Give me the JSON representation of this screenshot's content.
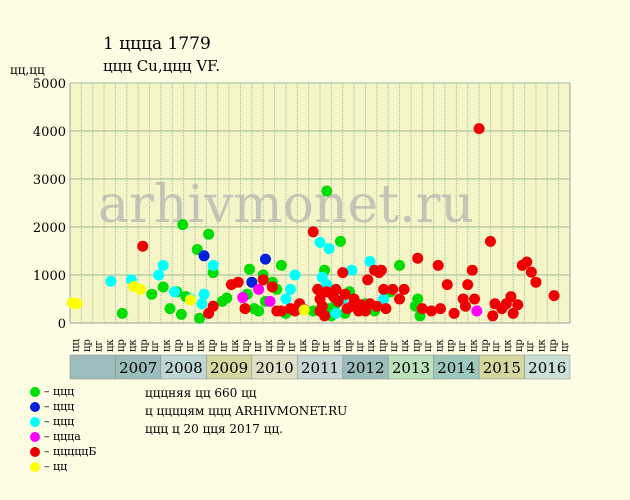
{
  "title": "1 ццца 1779",
  "subtitle": "ццц Cu,ццц VF.",
  "y_unit": "цц,цц",
  "watermark": "arhivmonet.ru",
  "colors": {
    "background": "#fdfde3",
    "plot_background": "#f5f5c8",
    "grid": "#9cbd9c",
    "axis": "#a0a0a0"
  },
  "legend": [
    {
      "label": "– ццц",
      "color": "#00dd00"
    },
    {
      "label": "– ццц",
      "color": "#0022dd"
    },
    {
      "label": "– ццц",
      "color": "#00ffff"
    },
    {
      "label": "– ццца",
      "color": "#ff00ff"
    },
    {
      "label": "– цццццБ",
      "color": "#ee0000"
    },
    {
      "label": "– цц",
      "color": "#ffff00"
    }
  ],
  "info_lines": [
    "цццняя цц 660 цц",
    "ц ццццям ццц ARHIVMONET.RU",
    "ццц ц 20 цця 2017 цц."
  ],
  "years": [
    {
      "label": "2007",
      "color": "#9cbdbd"
    },
    {
      "label": "2008",
      "color": "#bdd6d6"
    },
    {
      "label": "2009",
      "color": "#d6d6a0"
    },
    {
      "label": "2010",
      "color": "#e0e0c8"
    },
    {
      "label": "2011",
      "color": "#c8d6d6"
    },
    {
      "label": "2012",
      "color": "#9cbdbd"
    },
    {
      "label": "2013",
      "color": "#bde0bd"
    },
    {
      "label": "2014",
      "color": "#9cc8bd"
    },
    {
      "label": "2015",
      "color": "#d6d6a0"
    },
    {
      "label": "2016",
      "color": "#c8e0d6"
    }
  ],
  "month_labels": [
    "цц",
    "цр",
    "цг",
    "цк",
    "цр",
    "цк",
    "цр",
    "цг",
    "цк",
    "цр",
    "цг",
    "цк",
    "цр",
    "цг",
    "цк",
    "цр",
    "цг",
    "цк",
    "цр",
    "цг",
    "цк",
    "цр",
    "цг",
    "цк",
    "цр",
    "цг",
    "цк",
    "цр",
    "цг",
    "цк",
    "цр",
    "цг",
    "цк",
    "цр",
    "цг",
    "цк",
    "цр",
    "цг",
    "цк",
    "цр",
    "цг",
    "цк",
    "цр",
    "цг"
  ],
  "chart_data": {
    "type": "scatter",
    "x_unit": "year",
    "xlim": [
      2006.0,
      2017.0
    ],
    "ylim": [
      0,
      5000
    ],
    "yticks": [
      0,
      1000,
      2000,
      3000,
      4000,
      5000
    ],
    "grid": true,
    "legend_placement": "bottom-left",
    "series": [
      {
        "name": "– ццц",
        "color": "#00dd00",
        "points": [
          [
            2007.15,
            200
          ],
          [
            2007.8,
            600
          ],
          [
            2008.05,
            750
          ],
          [
            2008.2,
            300
          ],
          [
            2008.35,
            650
          ],
          [
            2008.45,
            180
          ],
          [
            2008.48,
            2050
          ],
          [
            2008.55,
            550
          ],
          [
            2008.8,
            1530
          ],
          [
            2008.85,
            100
          ],
          [
            2009.05,
            1850
          ],
          [
            2009.15,
            1050
          ],
          [
            2009.35,
            450
          ],
          [
            2009.45,
            520
          ],
          [
            2009.9,
            600
          ],
          [
            2009.95,
            1120
          ],
          [
            2010.05,
            300
          ],
          [
            2010.15,
            250
          ],
          [
            2010.25,
            1000
          ],
          [
            2010.3,
            450
          ],
          [
            2010.45,
            850
          ],
          [
            2010.55,
            700
          ],
          [
            2010.65,
            1200
          ],
          [
            2010.75,
            200
          ],
          [
            2011.1,
            300
          ],
          [
            2011.35,
            250
          ],
          [
            2011.6,
            1100
          ],
          [
            2011.65,
            2750
          ],
          [
            2011.7,
            300
          ],
          [
            2011.75,
            150
          ],
          [
            2011.85,
            400
          ],
          [
            2011.95,
            1700
          ],
          [
            2012.05,
            200
          ],
          [
            2012.5,
            400
          ],
          [
            2012.7,
            250
          ],
          [
            2013.05,
            650
          ],
          [
            2013.25,
            1200
          ],
          [
            2013.6,
            350
          ],
          [
            2013.65,
            500
          ],
          [
            2013.7,
            150
          ],
          [
            2012.15,
            650
          ]
        ]
      },
      {
        "name": "– ццц",
        "color": "#0022dd",
        "points": [
          [
            2008.95,
            1400
          ],
          [
            2010.0,
            850
          ],
          [
            2010.3,
            1330
          ]
        ]
      },
      {
        "name": "– ццц",
        "color": "#00ffff",
        "points": [
          [
            2006.9,
            870
          ],
          [
            2007.35,
            900
          ],
          [
            2007.95,
            1000
          ],
          [
            2008.05,
            1200
          ],
          [
            2008.3,
            650
          ],
          [
            2008.65,
            500
          ],
          [
            2008.9,
            400
          ],
          [
            2008.95,
            600
          ],
          [
            2009.15,
            1200
          ],
          [
            2010.75,
            500
          ],
          [
            2010.85,
            700
          ],
          [
            2010.95,
            1000
          ],
          [
            2011.45,
            700
          ],
          [
            2011.5,
            1680
          ],
          [
            2011.55,
            950
          ],
          [
            2011.65,
            800
          ],
          [
            2011.7,
            1550
          ],
          [
            2011.85,
            200
          ],
          [
            2012.0,
            500
          ],
          [
            2012.2,
            1100
          ],
          [
            2012.6,
            1280
          ],
          [
            2012.9,
            500
          ]
        ]
      },
      {
        "name": "– ццца",
        "color": "#ff00ff",
        "points": [
          [
            2009.8,
            530
          ],
          [
            2010.15,
            700
          ],
          [
            2010.4,
            450
          ],
          [
            2014.95,
            250
          ]
        ]
      },
      {
        "name": "– цццццБ",
        "color": "#ee0000",
        "points": [
          [
            2007.6,
            1600
          ],
          [
            2009.05,
            200
          ],
          [
            2009.15,
            350
          ],
          [
            2009.55,
            800
          ],
          [
            2009.7,
            850
          ],
          [
            2009.85,
            300
          ],
          [
            2010.25,
            900
          ],
          [
            2010.45,
            750
          ],
          [
            2010.55,
            250
          ],
          [
            2010.65,
            250
          ],
          [
            2010.85,
            300
          ],
          [
            2010.95,
            250
          ],
          [
            2011.05,
            400
          ],
          [
            2011.15,
            280
          ],
          [
            2011.35,
            1900
          ],
          [
            2011.45,
            700
          ],
          [
            2011.5,
            500
          ],
          [
            2011.5,
            250
          ],
          [
            2011.55,
            350
          ],
          [
            2011.6,
            150
          ],
          [
            2011.65,
            650
          ],
          [
            2011.75,
            620
          ],
          [
            2011.8,
            550
          ],
          [
            2011.85,
            700
          ],
          [
            2011.9,
            450
          ],
          [
            2012.0,
            1050
          ],
          [
            2012.05,
            600
          ],
          [
            2012.1,
            300
          ],
          [
            2012.2,
            350
          ],
          [
            2012.25,
            500
          ],
          [
            2012.35,
            250
          ],
          [
            2012.4,
            380
          ],
          [
            2012.5,
            250
          ],
          [
            2012.55,
            900
          ],
          [
            2012.6,
            400
          ],
          [
            2012.7,
            1100
          ],
          [
            2012.75,
            350
          ],
          [
            2012.8,
            1050
          ],
          [
            2012.85,
            1100
          ],
          [
            2012.9,
            700
          ],
          [
            2012.95,
            300
          ],
          [
            2013.1,
            700
          ],
          [
            2013.25,
            500
          ],
          [
            2013.35,
            700
          ],
          [
            2013.65,
            1350
          ],
          [
            2013.75,
            300
          ],
          [
            2013.95,
            250
          ],
          [
            2014.1,
            1200
          ],
          [
            2014.15,
            300
          ],
          [
            2014.3,
            800
          ],
          [
            2014.45,
            200
          ],
          [
            2014.65,
            500
          ],
          [
            2014.7,
            350
          ],
          [
            2014.75,
            800
          ],
          [
            2014.85,
            1100
          ],
          [
            2014.9,
            500
          ],
          [
            2015.0,
            4050
          ],
          [
            2015.25,
            1700
          ],
          [
            2015.3,
            150
          ],
          [
            2015.35,
            400
          ],
          [
            2015.5,
            300
          ],
          [
            2015.6,
            400
          ],
          [
            2015.7,
            550
          ],
          [
            2015.75,
            200
          ],
          [
            2015.85,
            380
          ],
          [
            2015.95,
            1200
          ],
          [
            2016.05,
            1270
          ],
          [
            2016.15,
            1060
          ],
          [
            2016.25,
            850
          ],
          [
            2016.65,
            570
          ]
        ]
      },
      {
        "name": "– цц",
        "color": "#ffff00",
        "points": [
          [
            2006.05,
            420
          ],
          [
            2006.15,
            400
          ],
          [
            2007.4,
            760
          ],
          [
            2007.55,
            700
          ],
          [
            2008.65,
            480
          ],
          [
            2011.15,
            270
          ]
        ]
      }
    ]
  }
}
